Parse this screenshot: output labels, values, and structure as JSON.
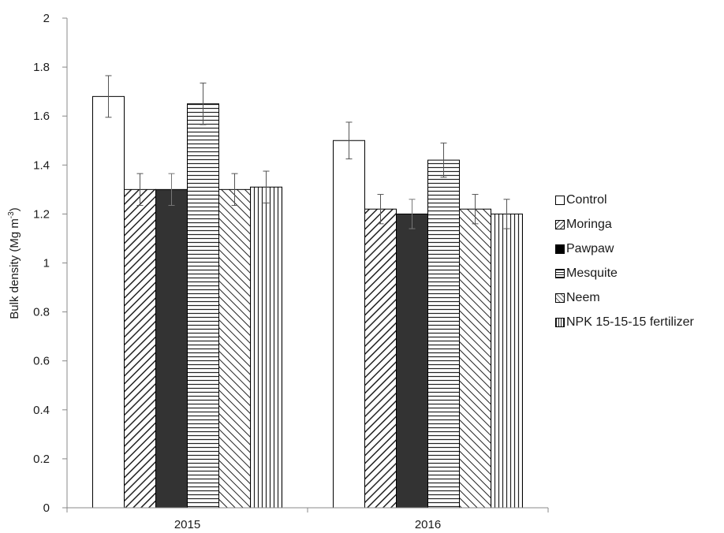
{
  "chart_data": {
    "type": "bar",
    "categories": [
      "2015",
      "2016"
    ],
    "ylabel_main": "Bulk density (Mg m",
    "ylabel_sup": "-3",
    "ylabel_tail": ")",
    "xlabel": "",
    "ylim": [
      0,
      2
    ],
    "yticks": [
      "0",
      "0.2",
      "0.4",
      "0.6",
      "0.8",
      "1",
      "1.2",
      "1.4",
      "1.6",
      "1.8",
      "2"
    ],
    "grid": false,
    "legend_position": "right",
    "error_bars": true,
    "series": [
      {
        "name": "Control",
        "pattern": "none",
        "values": [
          1.68,
          1.5
        ],
        "errors": [
          0.085,
          0.075
        ]
      },
      {
        "name": "Moringa",
        "pattern": "diag-down",
        "values": [
          1.3,
          1.22
        ],
        "errors": [
          0.065,
          0.06
        ]
      },
      {
        "name": "Pawpaw",
        "pattern": "solid",
        "values": [
          1.3,
          1.2
        ],
        "errors": [
          0.065,
          0.06
        ]
      },
      {
        "name": "Mesquite",
        "pattern": "horizontal",
        "values": [
          1.65,
          1.42
        ],
        "errors": [
          0.085,
          0.07
        ]
      },
      {
        "name": "Neem",
        "pattern": "diag-up",
        "values": [
          1.3,
          1.22
        ],
        "errors": [
          0.065,
          0.06
        ]
      },
      {
        "name": "NPK 15-15-15 fertilizer",
        "pattern": "vertical",
        "values": [
          1.31,
          1.2
        ],
        "errors": [
          0.065,
          0.06
        ]
      }
    ]
  }
}
